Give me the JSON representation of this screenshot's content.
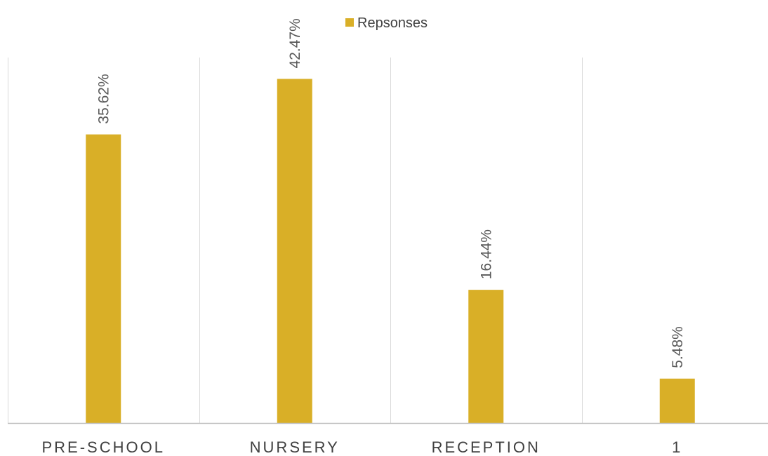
{
  "chart_data": {
    "type": "bar",
    "categories": [
      "PRE-SCHOOL",
      "NURSERY",
      "RECEPTION",
      "1"
    ],
    "series": [
      {
        "name": "Repsonses",
        "values": [
          35.62,
          42.47,
          16.44,
          5.48
        ],
        "labels": [
          "35.62%",
          "42.47%",
          "16.44%",
          "5.48%"
        ]
      }
    ],
    "ylim": [
      0,
      50
    ],
    "grid": "vertical category separators",
    "legend_position": "top-center",
    "colors": {
      "bar": "#D9AF27",
      "gridline": "#D9D9D9",
      "axis": "#BFBFBF"
    }
  }
}
